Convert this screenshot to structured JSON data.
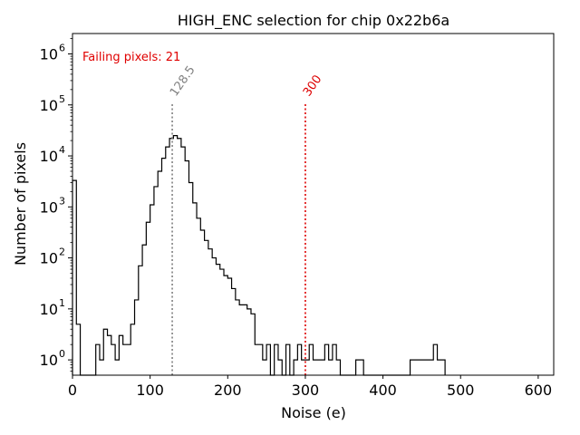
{
  "chart_data": {
    "type": "histogram",
    "title": "HIGH_ENC selection for chip 0x22b6a",
    "xlabel": "Noise (e)",
    "ylabel": "Number of pixels",
    "xlim": [
      0,
      620
    ],
    "ylim_log10": [
      -0.3,
      6.4
    ],
    "yscale": "log",
    "x_ticks": [
      0,
      100,
      200,
      300,
      400,
      500,
      600
    ],
    "x_tick_labels": [
      "0",
      "100",
      "200",
      "300",
      "400",
      "500",
      "600"
    ],
    "y_ticks_exp": [
      0,
      1,
      2,
      3,
      4,
      5,
      6
    ],
    "y_tick_base": "10",
    "annotation": "Failing pixels: 21",
    "vlines": [
      {
        "x": 128.5,
        "label": "128.5",
        "color": "#808080",
        "top_log10": 5.05
      },
      {
        "x": 300,
        "label": "300",
        "color": "#dd0000",
        "top_log10": 5.05
      }
    ],
    "bin_width": 5,
    "bins": [
      [
        0,
        3300
      ],
      [
        5,
        5
      ],
      [
        10,
        0
      ],
      [
        15,
        0
      ],
      [
        20,
        0
      ],
      [
        25,
        0
      ],
      [
        30,
        2
      ],
      [
        35,
        1
      ],
      [
        40,
        4
      ],
      [
        45,
        3
      ],
      [
        50,
        2
      ],
      [
        55,
        1
      ],
      [
        60,
        3
      ],
      [
        65,
        2
      ],
      [
        70,
        2
      ],
      [
        75,
        5
      ],
      [
        80,
        15
      ],
      [
        85,
        70
      ],
      [
        90,
        180
      ],
      [
        95,
        500
      ],
      [
        100,
        1100
      ],
      [
        105,
        2500
      ],
      [
        110,
        5000
      ],
      [
        115,
        9000
      ],
      [
        120,
        15000
      ],
      [
        125,
        22000
      ],
      [
        130,
        25000
      ],
      [
        135,
        22000
      ],
      [
        140,
        15000
      ],
      [
        145,
        8000
      ],
      [
        150,
        3000
      ],
      [
        155,
        1200
      ],
      [
        160,
        600
      ],
      [
        165,
        350
      ],
      [
        170,
        220
      ],
      [
        175,
        150
      ],
      [
        180,
        100
      ],
      [
        185,
        75
      ],
      [
        190,
        60
      ],
      [
        195,
        45
      ],
      [
        200,
        40
      ],
      [
        205,
        25
      ],
      [
        210,
        15
      ],
      [
        215,
        12
      ],
      [
        220,
        12
      ],
      [
        225,
        10
      ],
      [
        230,
        8
      ],
      [
        235,
        2
      ],
      [
        240,
        2
      ],
      [
        245,
        1
      ],
      [
        250,
        2
      ],
      [
        255,
        0
      ],
      [
        260,
        2
      ],
      [
        265,
        1
      ],
      [
        270,
        0
      ],
      [
        275,
        2
      ],
      [
        280,
        0
      ],
      [
        285,
        1
      ],
      [
        290,
        2
      ],
      [
        295,
        1
      ],
      [
        300,
        1
      ],
      [
        305,
        2
      ],
      [
        310,
        1
      ],
      [
        315,
        1
      ],
      [
        320,
        1
      ],
      [
        325,
        2
      ],
      [
        330,
        1
      ],
      [
        335,
        2
      ],
      [
        340,
        1
      ],
      [
        345,
        0
      ],
      [
        350,
        0
      ],
      [
        355,
        0
      ],
      [
        360,
        0
      ],
      [
        365,
        1
      ],
      [
        370,
        1
      ],
      [
        375,
        0
      ],
      [
        380,
        0
      ],
      [
        385,
        0
      ],
      [
        390,
        0
      ],
      [
        395,
        0
      ],
      [
        400,
        0
      ],
      [
        405,
        0
      ],
      [
        410,
        0
      ],
      [
        415,
        0
      ],
      [
        420,
        0
      ],
      [
        425,
        0
      ],
      [
        430,
        0
      ],
      [
        435,
        1
      ],
      [
        440,
        1
      ],
      [
        445,
        1
      ],
      [
        450,
        1
      ],
      [
        455,
        1
      ],
      [
        460,
        1
      ],
      [
        465,
        2
      ],
      [
        470,
        1
      ],
      [
        475,
        1
      ]
    ]
  }
}
